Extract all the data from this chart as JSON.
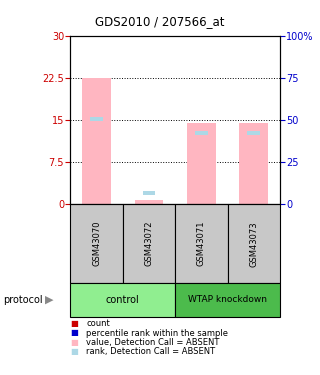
{
  "title": "GDS2010 / 207566_at",
  "samples": [
    "GSM43070",
    "GSM43072",
    "GSM43071",
    "GSM43073"
  ],
  "bar_color_absent": "#FFB6C1",
  "rank_color_absent": "#ADD8E6",
  "count_color": "#CC0000",
  "rank_color": "#0000CC",
  "ylim_left": [
    0,
    30
  ],
  "ylim_right": [
    0,
    100
  ],
  "yticks_left": [
    0,
    7.5,
    15,
    22.5,
    30
  ],
  "yticks_right": [
    0,
    25,
    50,
    75,
    100
  ],
  "ytick_labels_left": [
    "0",
    "7.5",
    "15",
    "22.5",
    "30"
  ],
  "ytick_labels_right": [
    "0",
    "25",
    "50",
    "75",
    "100%"
  ],
  "values_absent": [
    22.5,
    0.8,
    14.5,
    14.5
  ],
  "ranks_absent": [
    15.0,
    1.8,
    12.5,
    12.5
  ],
  "bg_color": "#ffffff",
  "sample_bg": "#c8c8c8",
  "control_group_color": "#90EE90",
  "knockdown_group_color": "#4CBB4C",
  "legend_items": [
    {
      "color": "#CC0000",
      "label": "count"
    },
    {
      "color": "#0000CC",
      "label": "percentile rank within the sample"
    },
    {
      "color": "#FFB6C1",
      "label": "value, Detection Call = ABSENT"
    },
    {
      "color": "#ADD8E6",
      "label": "rank, Detection Call = ABSENT"
    }
  ]
}
